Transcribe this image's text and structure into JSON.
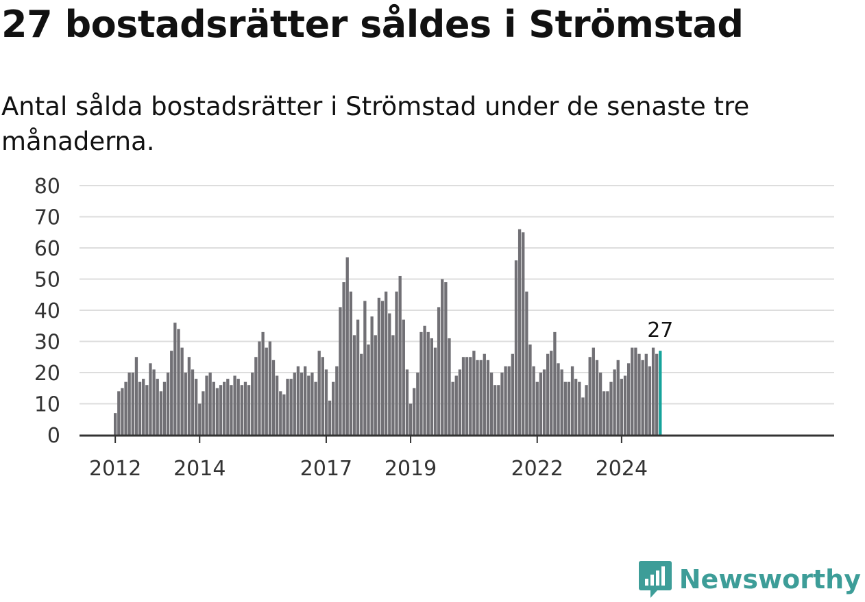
{
  "header": {
    "title": "27 bostadsrätter såldes i Strömstad",
    "subtitle": "Antal sålda bostadsrätter i Strömstad under de senaste tre månaderna."
  },
  "brand": {
    "name": "Newsworthy",
    "icon": "newsworthy-logo-icon",
    "color": "#3d9d98"
  },
  "colors": {
    "bar": "#717075",
    "highlight": "#16a39b",
    "grid": "#dddddd",
    "axis": "#333333"
  },
  "chart_data": {
    "type": "bar",
    "ylim": [
      0,
      80
    ],
    "y_ticks": [
      0,
      10,
      20,
      30,
      40,
      50,
      60,
      70,
      80
    ],
    "x_ticks": [
      {
        "label": "2012",
        "index": 0
      },
      {
        "label": "2014",
        "index": 24
      },
      {
        "label": "2017",
        "index": 60
      },
      {
        "label": "2019",
        "index": 84
      },
      {
        "label": "2022",
        "index": 120
      },
      {
        "label": "2024",
        "index": 144
      }
    ],
    "grid": true,
    "first_period": "2011-12",
    "values": [
      7,
      14,
      15,
      17,
      20,
      20,
      25,
      17,
      18,
      16,
      23,
      21,
      18,
      14,
      17,
      20,
      27,
      36,
      34,
      28,
      20,
      25,
      21,
      18,
      10,
      14,
      19,
      20,
      17,
      15,
      16,
      17,
      18,
      16,
      19,
      18,
      16,
      17,
      16,
      20,
      25,
      30,
      33,
      28,
      30,
      24,
      19,
      14,
      13,
      18,
      18,
      20,
      22,
      20,
      22,
      19,
      20,
      17,
      27,
      25,
      21,
      11,
      17,
      22,
      41,
      49,
      57,
      46,
      32,
      37,
      26,
      43,
      29,
      38,
      32,
      44,
      43,
      46,
      39,
      32,
      46,
      51,
      37,
      21,
      10,
      15,
      20,
      33,
      35,
      33,
      31,
      28,
      41,
      50,
      49,
      31,
      17,
      19,
      21,
      25,
      25,
      25,
      27,
      24,
      24,
      26,
      24,
      20,
      16,
      16,
      20,
      22,
      22,
      26,
      56,
      66,
      65,
      46,
      29,
      22,
      17,
      20,
      21,
      26,
      27,
      33,
      23,
      21,
      17,
      17,
      22,
      18,
      17,
      12,
      16,
      25,
      28,
      24,
      20,
      14,
      14,
      17,
      21,
      24,
      18,
      19,
      23,
      28,
      28,
      26,
      24,
      26,
      22,
      28,
      26,
      27
    ],
    "highlight_last": true,
    "last_label": "27"
  }
}
